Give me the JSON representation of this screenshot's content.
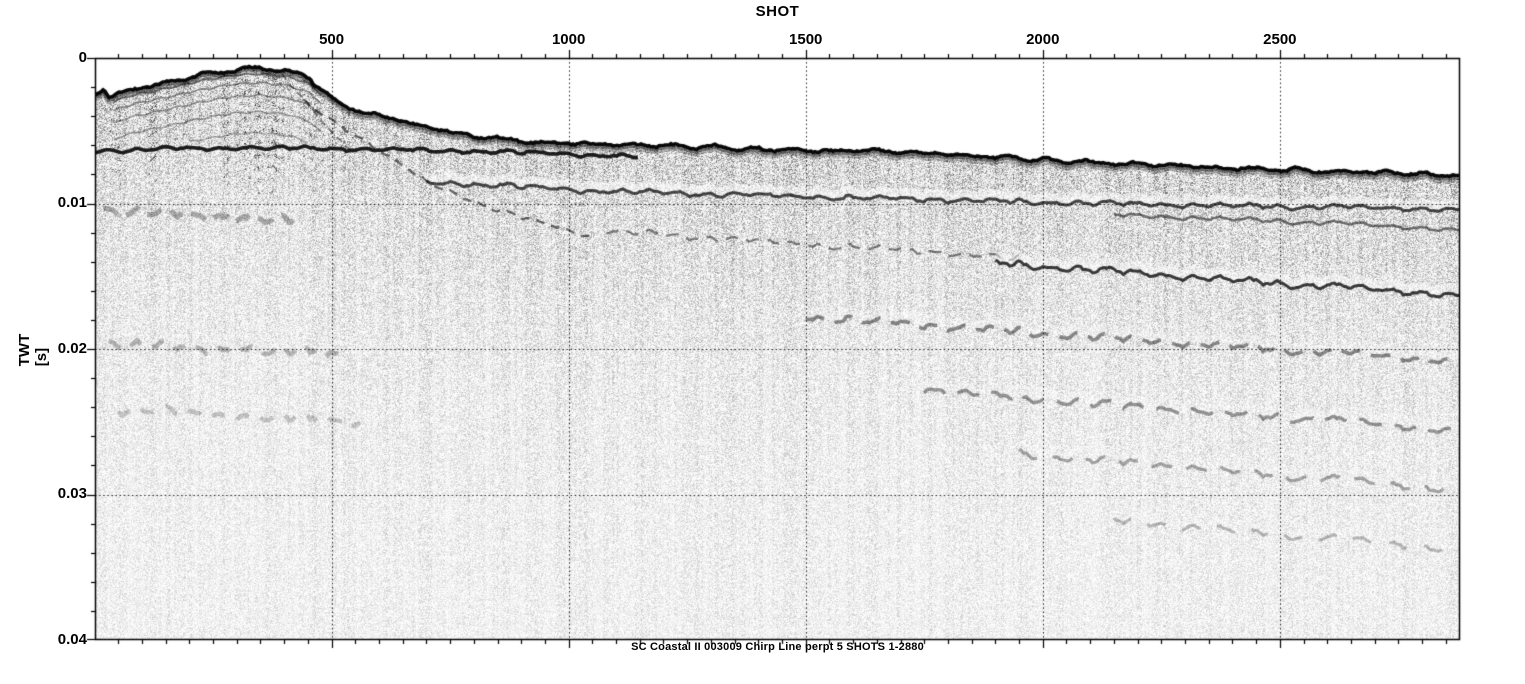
{
  "figure": {
    "background": "#ffffff",
    "ink": "#000000"
  },
  "chart_data": {
    "type": "heatmap",
    "subtype": "chirp-seismic-reflection-profile",
    "title": "SC Coastal II 003009 Chirp Line perpt 5 SHOTS 1-2880",
    "xlabel": "SHOT",
    "ylabel": "TWT [s]",
    "xlim": [
      1,
      2880
    ],
    "ylim": [
      0,
      0.04
    ],
    "y_axis_direction": "down",
    "colormap": "grayscale",
    "grid": {
      "style": "dotted",
      "vertical_at": [
        500,
        1000,
        1500,
        2000,
        2500
      ],
      "horizontal_at": [
        0.01,
        0.02,
        0.03
      ]
    },
    "x_major_ticks": [
      {
        "value": 500,
        "label": "500"
      },
      {
        "value": 1000,
        "label": "1000"
      },
      {
        "value": 1500,
        "label": "1500"
      },
      {
        "value": 2000,
        "label": "2000"
      },
      {
        "value": 2500,
        "label": "2500"
      }
    ],
    "x_minor_tick_step": 50,
    "y_major_ticks": [
      {
        "value": 0,
        "label": "0"
      },
      {
        "value": 0.01,
        "label": "0.01"
      },
      {
        "value": 0.02,
        "label": "0.02"
      },
      {
        "value": 0.03,
        "label": "0.03"
      },
      {
        "value": 0.04,
        "label": "0.04"
      }
    ],
    "y_minor_tick_step": 0.002,
    "seafloor_twt_s": [
      [
        1,
        0.0024
      ],
      [
        20,
        0.0022
      ],
      [
        32,
        0.0028
      ],
      [
        55,
        0.0024
      ],
      [
        90,
        0.0021
      ],
      [
        150,
        0.0017
      ],
      [
        220,
        0.0012
      ],
      [
        290,
        0.0008
      ],
      [
        350,
        0.0007
      ],
      [
        410,
        0.0009
      ],
      [
        455,
        0.0014
      ],
      [
        500,
        0.0028
      ],
      [
        545,
        0.0035
      ],
      [
        620,
        0.0041
      ],
      [
        700,
        0.0048
      ],
      [
        800,
        0.0054
      ],
      [
        900,
        0.0057
      ],
      [
        1050,
        0.0059
      ],
      [
        1250,
        0.0061
      ],
      [
        1450,
        0.0063
      ],
      [
        1650,
        0.0064
      ],
      [
        1850,
        0.0067
      ],
      [
        2050,
        0.0071
      ],
      [
        2250,
        0.0074
      ],
      [
        2450,
        0.0076
      ],
      [
        2650,
        0.0078
      ],
      [
        2880,
        0.0081
      ]
    ],
    "shoal": {
      "description": "High-amplitude chaotic/stratified mound (sand shoal) at left end of line",
      "shot_range": [
        1,
        660
      ],
      "core_range": [
        1,
        430
      ],
      "lamination_offsets_s": [
        0.0004,
        0.0009,
        0.0015,
        0.0022,
        0.003,
        0.004
      ]
    },
    "reflectors": [
      {
        "name": "transgressive-unconformity",
        "points": [
          [
            1,
            0.0064
          ],
          [
            200,
            0.0062
          ],
          [
            400,
            0.0062
          ],
          [
            600,
            0.0063
          ],
          [
            800,
            0.0064
          ],
          [
            1000,
            0.0066
          ],
          [
            1150,
            0.0068
          ]
        ],
        "strength": 0.9,
        "width": 3.6,
        "wiggle": 1.2,
        "dash": null,
        "halo": 0
      },
      {
        "name": "dipping-channel-flank",
        "points": [
          [
            440,
            0.003
          ],
          [
            560,
            0.0055
          ],
          [
            700,
            0.0085
          ],
          [
            850,
            0.0105
          ],
          [
            1050,
            0.0123
          ]
        ],
        "strength": 0.6,
        "width": 2.2,
        "wiggle": 1.2,
        "dash": [
          9,
          7
        ],
        "halo": 0
      },
      {
        "name": "dipping-shoal-flank",
        "points": [
          [
            395,
            0.0012
          ],
          [
            450,
            0.0032
          ],
          [
            505,
            0.0053
          ],
          [
            545,
            0.0064
          ]
        ],
        "strength": 0.5,
        "width": 1.8,
        "wiggle": 0.8,
        "dash": [
          7,
          5
        ],
        "halo": 0
      },
      {
        "name": "r1-upper",
        "points": [
          [
            700,
            0.0085
          ],
          [
            1100,
            0.0092
          ],
          [
            1600,
            0.0096
          ],
          [
            2100,
            0.01
          ],
          [
            2880,
            0.0104
          ]
        ],
        "strength": 0.72,
        "width": 3.0,
        "wiggle": 1.6,
        "dash": null,
        "halo": 0.5
      },
      {
        "name": "r1-lower",
        "points": [
          [
            2150,
            0.0108
          ],
          [
            2500,
            0.0112
          ],
          [
            2880,
            0.0118
          ]
        ],
        "strength": 0.55,
        "width": 2.5,
        "wiggle": 1.5,
        "dash": null,
        "halo": 0
      },
      {
        "name": "r2",
        "points": [
          [
            1080,
            0.0119
          ],
          [
            1400,
            0.0126
          ],
          [
            1700,
            0.0132
          ],
          [
            1950,
            0.0138
          ]
        ],
        "strength": 0.5,
        "width": 2.2,
        "wiggle": 2.0,
        "dash": [
          13,
          9
        ],
        "halo": 0
      },
      {
        "name": "r3",
        "points": [
          [
            1900,
            0.0141
          ],
          [
            2200,
            0.0148
          ],
          [
            2500,
            0.0155
          ],
          [
            2880,
            0.0163
          ]
        ],
        "strength": 0.78,
        "width": 3.0,
        "wiggle": 2.2,
        "dash": null,
        "halo": 0.45
      },
      {
        "name": "r4",
        "points": [
          [
            1500,
            0.0178
          ],
          [
            1900,
            0.0187
          ],
          [
            2300,
            0.0196
          ],
          [
            2880,
            0.0208
          ]
        ],
        "strength": 0.45,
        "width": 3.6,
        "wiggle": 2.4,
        "dash": [
          20,
          12
        ],
        "halo": 0.25
      },
      {
        "name": "r5",
        "points": [
          [
            1750,
            0.0228
          ],
          [
            2200,
            0.024
          ],
          [
            2600,
            0.0249
          ],
          [
            2880,
            0.0256
          ]
        ],
        "strength": 0.4,
        "width": 3.4,
        "wiggle": 2.4,
        "dash": [
          24,
          14
        ],
        "halo": 0.22
      },
      {
        "name": "r6",
        "points": [
          [
            1950,
            0.0272
          ],
          [
            2400,
            0.0284
          ],
          [
            2880,
            0.0297
          ]
        ],
        "strength": 0.34,
        "width": 3.2,
        "wiggle": 2.4,
        "dash": [
          22,
          16
        ],
        "halo": 0.18
      },
      {
        "name": "r7",
        "points": [
          [
            2150,
            0.0318
          ],
          [
            2600,
            0.033
          ],
          [
            2880,
            0.0338
          ]
        ],
        "strength": 0.26,
        "width": 3.0,
        "wiggle": 2.2,
        "dash": [
          20,
          18
        ],
        "halo": 0.12
      },
      {
        "name": "left-band-1",
        "points": [
          [
            20,
            0.0105
          ],
          [
            200,
            0.0108
          ],
          [
            420,
            0.0112
          ]
        ],
        "strength": 0.3,
        "width": 5.0,
        "wiggle": 3.0,
        "dash": [
          16,
          10
        ],
        "halo": 0
      },
      {
        "name": "left-band-2",
        "points": [
          [
            30,
            0.0196
          ],
          [
            250,
            0.02
          ],
          [
            520,
            0.0204
          ]
        ],
        "strength": 0.26,
        "width": 4.5,
        "wiggle": 3.0,
        "dash": [
          14,
          12
        ],
        "halo": 0
      },
      {
        "name": "left-band-3",
        "points": [
          [
            50,
            0.0241
          ],
          [
            300,
            0.0246
          ],
          [
            560,
            0.0251
          ]
        ],
        "strength": 0.2,
        "width": 4.5,
        "wiggle": 3.0,
        "dash": [
          14,
          14
        ],
        "halo": 0
      }
    ],
    "description": "Chirp sub-bottom seismic profile, shots 1-2880, 0-0.04 s two-way travel time. A high-amplitude shoal/mound rises to ~0.0007 s near shot 350 at the left; seafloor deepens seaward from ~0.0028 s (shot 500) to ~0.0081 s (shot 2880). A strong sub-horizontal unconformity at ~0.0063 s underlies the shoal and merges with the seafloor reflector to the right. Gently seaward-dipping sub-bottom reflectors occur beneath the shelf; speckled acoustic noise fades with depth."
  }
}
